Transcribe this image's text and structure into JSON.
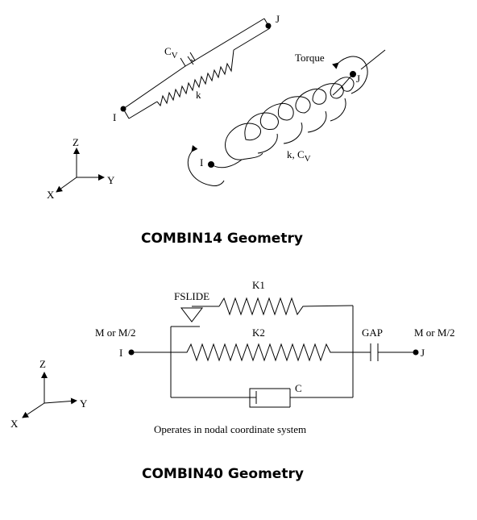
{
  "figure1": {
    "caption": "COMBIN14 Geometry",
    "linear": {
      "damper_label": "C",
      "damper_sub": "V",
      "spring_label": "k",
      "node_i": "I",
      "node_j": "J"
    },
    "torsional": {
      "torque_label": "Torque",
      "node_i": "I",
      "node_j": "J",
      "props_label": "k, C",
      "props_sub": "V"
    },
    "axes": {
      "z": "Z",
      "y": "Y",
      "x": "X"
    }
  },
  "figure2": {
    "caption": "COMBIN40 Geometry",
    "k1_label": "K1",
    "k2_label": "K2",
    "fslide_label": "FSLIDE",
    "gap_label": "GAP",
    "c_label": "C",
    "left_load": "M or M/2",
    "right_load": "M or M/2",
    "node_i": "I",
    "node_j": "J",
    "note": "Operates in nodal coordinate system",
    "axes": {
      "z": "Z",
      "y": "Y",
      "x": "X"
    }
  }
}
